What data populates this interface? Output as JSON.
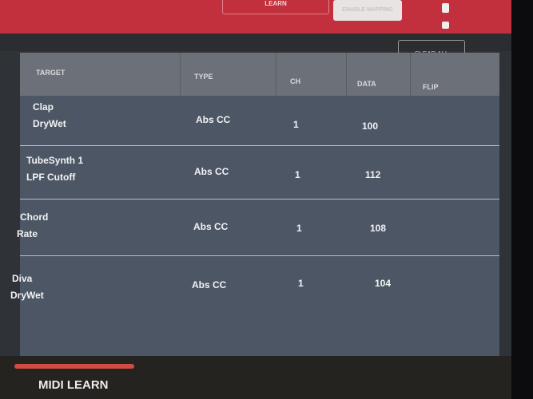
{
  "header": {
    "learn_label": "LEARN",
    "enable_mapping_label": "ENABLE MAPPING",
    "clear_all_label": "CLEAR ALL"
  },
  "table": {
    "columns": [
      "TARGET",
      "TYPE",
      "CH",
      "DATA",
      "FLIP"
    ],
    "rows": [
      {
        "target_line1": "Clap",
        "target_line2": "DryWet",
        "type": "Abs CC",
        "ch": "1",
        "data": "100",
        "flip": ""
      },
      {
        "target_line1": "TubeSynth 1",
        "target_line2": "LPF Cutoff",
        "type": "Abs CC",
        "ch": "1",
        "data": "112",
        "flip": ""
      },
      {
        "target_line1": "Chord",
        "target_line2": "Rate",
        "type": "Abs CC",
        "ch": "1",
        "data": "108",
        "flip": ""
      },
      {
        "target_line1": "Diva",
        "target_line2": "DryWet",
        "type": "Abs CC",
        "ch": "1",
        "data": "104",
        "flip": ""
      }
    ]
  },
  "bottom": {
    "tab_label": "MIDI LEARN"
  },
  "colors": {
    "accent": "#c1303c",
    "indicator": "#d24a44"
  }
}
